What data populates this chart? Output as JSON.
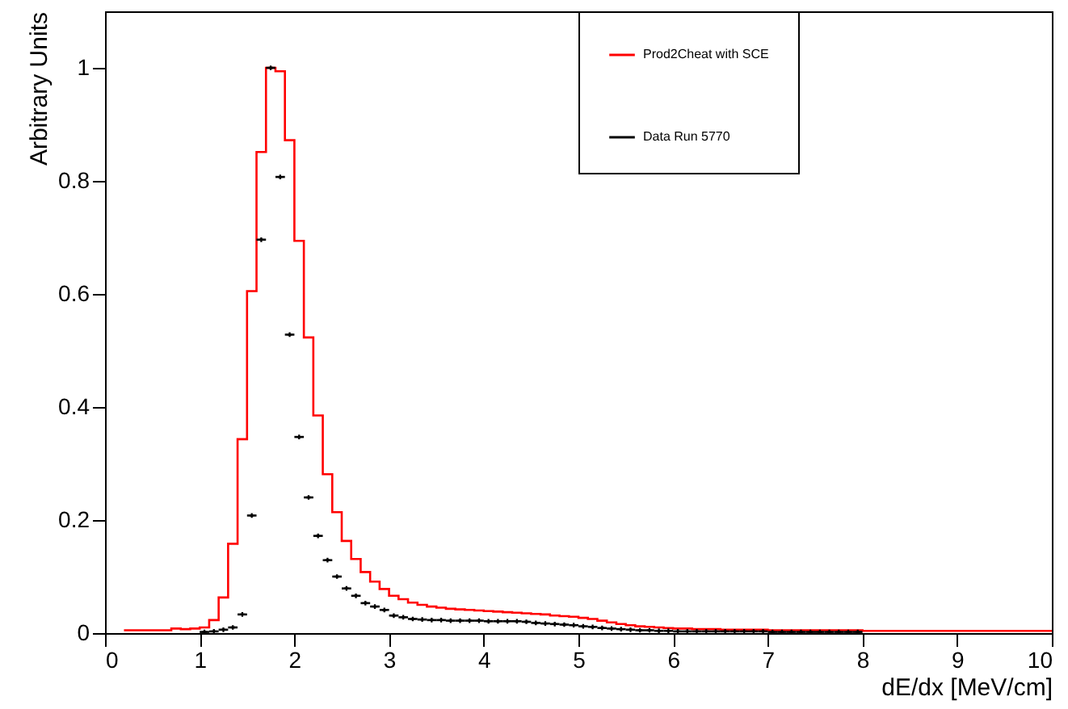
{
  "chart_data": {
    "type": "histogram",
    "xlabel": "dE/dx [MeV/cm]",
    "ylabel": "Arbitrary Units",
    "xlim": [
      0,
      10
    ],
    "ylim": [
      0,
      1.1
    ],
    "xticks": [
      0,
      1,
      2,
      3,
      4,
      5,
      6,
      7,
      8,
      9,
      10
    ],
    "yticks": [
      0,
      0.2,
      0.4,
      0.6,
      0.8,
      1
    ],
    "grid": false,
    "legend": "top",
    "bins": [
      0.2,
      0.3,
      0.4,
      0.5,
      0.6,
      0.7,
      0.8,
      0.9,
      1.0,
      1.1,
      1.2,
      1.3,
      1.4,
      1.5,
      1.6,
      1.7,
      1.8,
      1.9,
      2.0,
      2.1,
      2.2,
      2.3,
      2.4,
      2.5,
      2.6,
      2.7,
      2.8,
      2.9,
      3.0,
      3.1,
      3.2,
      3.3,
      3.4,
      3.5,
      3.6,
      3.7,
      3.8,
      3.9,
      4.0,
      4.1,
      4.2,
      4.3,
      4.4,
      4.5,
      4.6,
      4.7,
      4.8,
      4.9,
      5.0,
      5.1,
      5.2,
      5.3,
      5.4,
      5.5,
      5.6,
      5.7,
      5.8,
      5.9,
      6.0,
      6.1,
      6.2,
      6.3,
      6.4,
      6.5,
      6.6,
      6.7,
      6.8,
      6.9,
      7.0,
      7.1,
      7.2,
      7.3,
      7.4,
      7.5,
      7.6,
      7.7,
      7.8,
      7.9,
      8.0,
      8.1,
      8.2,
      8.3,
      8.4,
      8.5,
      8.6,
      8.7,
      8.8,
      8.9,
      9.0,
      9.1,
      9.2,
      9.3,
      9.4,
      9.5,
      9.6,
      9.7,
      9.8,
      9.9,
      10.0
    ],
    "series": [
      {
        "name": "Prod2Cheat with SCE",
        "color": "#ff0000",
        "values": [
          0.005,
          0.005,
          0.005,
          0.005,
          0.005,
          0.008,
          0.007,
          0.008,
          0.01,
          0.023,
          0.063,
          0.158,
          0.343,
          0.605,
          0.851,
          1.0,
          0.994,
          0.872,
          0.694,
          0.523,
          0.385,
          0.281,
          0.214,
          0.163,
          0.131,
          0.108,
          0.091,
          0.078,
          0.066,
          0.06,
          0.054,
          0.05,
          0.047,
          0.045,
          0.043,
          0.042,
          0.041,
          0.04,
          0.039,
          0.038,
          0.037,
          0.036,
          0.035,
          0.034,
          0.033,
          0.031,
          0.03,
          0.029,
          0.027,
          0.025,
          0.022,
          0.019,
          0.016,
          0.014,
          0.012,
          0.011,
          0.01,
          0.009,
          0.008,
          0.008,
          0.007,
          0.007,
          0.007,
          0.006,
          0.006,
          0.006,
          0.006,
          0.006,
          0.005,
          0.005,
          0.005,
          0.005,
          0.005,
          0.005,
          0.005,
          0.005,
          0.005,
          0.005,
          0.004,
          0.004,
          0.004,
          0.004,
          0.004,
          0.004,
          0.004,
          0.004,
          0.004,
          0.004,
          0.004,
          0.004,
          0.004,
          0.004,
          0.004,
          0.004,
          0.004,
          0.004,
          0.004,
          0.004
        ]
      },
      {
        "name": "Data Run 5770",
        "color": "#000000",
        "type": "scatter",
        "marker": "cross",
        "x": [
          1.05,
          1.15,
          1.25,
          1.35,
          1.45,
          1.55,
          1.65,
          1.75,
          1.85,
          1.95,
          2.05,
          2.15,
          2.25,
          2.35,
          2.45,
          2.55,
          2.65,
          2.75,
          2.85,
          2.95,
          3.05,
          3.15,
          3.25,
          3.35,
          3.45,
          3.55,
          3.65,
          3.75,
          3.85,
          3.95,
          4.05,
          4.15,
          4.25,
          4.35,
          4.45,
          4.55,
          4.65,
          4.75,
          4.85,
          4.95,
          5.05,
          5.15,
          5.25,
          5.35,
          5.45,
          5.55,
          5.65,
          5.75,
          5.85,
          5.95,
          6.05,
          6.15,
          6.25,
          6.35,
          6.45,
          6.55,
          6.65,
          6.75,
          6.85,
          6.95,
          7.05,
          7.15,
          7.25,
          7.35,
          7.45,
          7.55,
          7.65,
          7.75,
          7.85,
          7.95
        ],
        "values": [
          0.002,
          0.003,
          0.006,
          0.01,
          0.033,
          0.208,
          0.696,
          1.0,
          0.807,
          0.528,
          0.347,
          0.24,
          0.172,
          0.129,
          0.1,
          0.079,
          0.066,
          0.053,
          0.047,
          0.041,
          0.031,
          0.028,
          0.025,
          0.024,
          0.023,
          0.023,
          0.022,
          0.022,
          0.022,
          0.022,
          0.021,
          0.021,
          0.021,
          0.021,
          0.02,
          0.018,
          0.017,
          0.016,
          0.015,
          0.014,
          0.012,
          0.011,
          0.009,
          0.008,
          0.007,
          0.006,
          0.005,
          0.005,
          0.004,
          0.004,
          0.003,
          0.003,
          0.003,
          0.003,
          0.003,
          0.003,
          0.003,
          0.003,
          0.003,
          0.003,
          0.002,
          0.002,
          0.002,
          0.002,
          0.002,
          0.002,
          0.002,
          0.002,
          0.002,
          0.002
        ],
        "xerrors": [
          0.05,
          0.05,
          0.05,
          0.05,
          0.05,
          0.05,
          0.05,
          0.05,
          0.05,
          0.05,
          0.05,
          0.05,
          0.05,
          0.05,
          0.05,
          0.05,
          0.05,
          0.05,
          0.05,
          0.05,
          0.05,
          0.05,
          0.05,
          0.05,
          0.05,
          0.05,
          0.05,
          0.05,
          0.05,
          0.05,
          0.05,
          0.05,
          0.05,
          0.05,
          0.05,
          0.05,
          0.05,
          0.05,
          0.05,
          0.05,
          0.05,
          0.05,
          0.05,
          0.05,
          0.05,
          0.05,
          0.05,
          0.05,
          0.05,
          0.05,
          0.05,
          0.05,
          0.05,
          0.05,
          0.05,
          0.05,
          0.05,
          0.05,
          0.05,
          0.05,
          0.05,
          0.05,
          0.05,
          0.05,
          0.05,
          0.05,
          0.05,
          0.05,
          0.05,
          0.05
        ]
      }
    ]
  }
}
